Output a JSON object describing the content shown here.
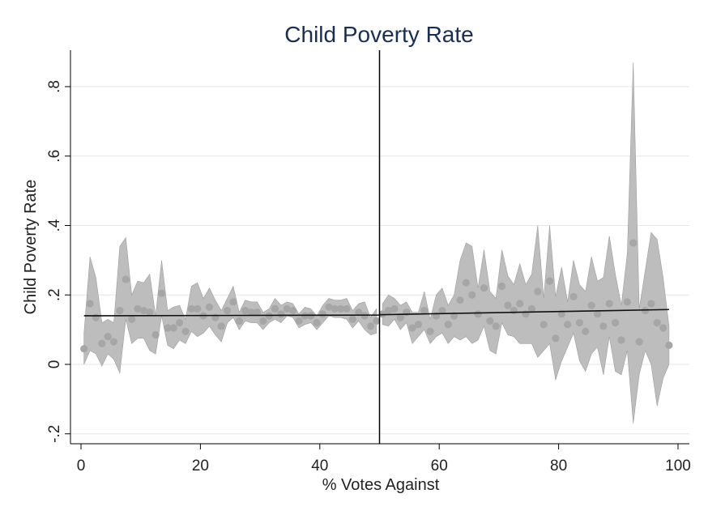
{
  "chart_data": {
    "type": "scatter",
    "title": "Child Poverty Rate",
    "xlabel": "% Votes Against",
    "ylabel": "Child Poverty Rate",
    "xlim": [
      0,
      100
    ],
    "ylim": [
      -0.2,
      0.8
    ],
    "x_ticks": [
      0,
      20,
      40,
      60,
      80,
      100
    ],
    "y_ticks": [
      -0.2,
      0,
      0.2,
      0.4,
      0.6,
      0.8
    ],
    "x_tick_labels": [
      "0",
      "20",
      "40",
      "60",
      "80",
      "100"
    ],
    "y_tick_labels": [
      "-.2",
      "0",
      ".2",
      ".4",
      ".6",
      ".8"
    ],
    "grid": "horizontal",
    "cutoff_x": 50,
    "colors": {
      "band": "#bdbdbd",
      "band_edge": "#9e9e9e",
      "points": "#a6a6a6",
      "fit": "#111111",
      "title": "#1a2e4f"
    },
    "points": {
      "x": [
        0.5,
        1.5,
        2.5,
        3.5,
        4.5,
        5.5,
        6.5,
        7.5,
        8.5,
        9.5,
        10.5,
        11.5,
        12.5,
        13.5,
        14.5,
        15.5,
        16.5,
        17.5,
        18.5,
        19.5,
        20.5,
        21.5,
        22.5,
        23.5,
        24.5,
        25.5,
        26.5,
        27.5,
        28.5,
        29.5,
        30.5,
        31.5,
        32.5,
        33.5,
        34.5,
        35.5,
        36.5,
        37.5,
        38.5,
        39.5,
        40.5,
        41.5,
        42.5,
        43.5,
        44.5,
        45.5,
        46.5,
        47.5,
        48.5,
        49.5,
        50.5,
        51.5,
        52.5,
        53.5,
        54.5,
        55.5,
        56.5,
        57.5,
        58.5,
        59.5,
        60.5,
        61.5,
        62.5,
        63.5,
        64.5,
        65.5,
        66.5,
        67.5,
        68.5,
        69.5,
        70.5,
        71.5,
        72.5,
        73.5,
        74.5,
        75.5,
        76.5,
        77.5,
        78.5,
        79.5,
        80.5,
        81.5,
        82.5,
        83.5,
        84.5,
        85.5,
        86.5,
        87.5,
        88.5,
        89.5,
        90.5,
        91.5,
        92.5,
        93.5,
        94.5,
        95.5,
        96.5,
        97.5,
        98.5
      ],
      "y": [
        0.045,
        0.175,
        0.135,
        0.06,
        0.08,
        0.065,
        0.155,
        0.245,
        0.13,
        0.16,
        0.155,
        0.15,
        0.085,
        0.205,
        0.105,
        0.105,
        0.12,
        0.095,
        0.16,
        0.16,
        0.14,
        0.165,
        0.135,
        0.11,
        0.155,
        0.18,
        0.125,
        0.155,
        0.15,
        0.15,
        0.125,
        0.14,
        0.16,
        0.145,
        0.16,
        0.155,
        0.125,
        0.14,
        0.14,
        0.12,
        0.145,
        0.165,
        0.16,
        0.16,
        0.16,
        0.13,
        0.15,
        0.14,
        0.11,
        0.125,
        0.145,
        0.155,
        0.16,
        0.135,
        0.15,
        0.105,
        0.115,
        0.155,
        0.095,
        0.14,
        0.155,
        0.115,
        0.14,
        0.185,
        0.235,
        0.2,
        0.145,
        0.22,
        0.125,
        0.11,
        0.225,
        0.17,
        0.155,
        0.175,
        0.145,
        0.16,
        0.21,
        0.115,
        0.24,
        0.075,
        0.145,
        0.115,
        0.195,
        0.12,
        0.095,
        0.17,
        0.145,
        0.11,
        0.175,
        0.12,
        0.07,
        0.18,
        0.35,
        0.065,
        0.155,
        0.175,
        0.12,
        0.105,
        0.055
      ]
    },
    "ci_band": {
      "x": [
        0.5,
        1.5,
        2.5,
        3.5,
        4.5,
        5.5,
        6.5,
        7.5,
        8.5,
        9.5,
        10.5,
        11.5,
        12.5,
        13.5,
        14.5,
        15.5,
        16.5,
        17.5,
        18.5,
        19.5,
        20.5,
        21.5,
        22.5,
        23.5,
        24.5,
        25.5,
        26.5,
        27.5,
        28.5,
        29.5,
        30.5,
        31.5,
        32.5,
        33.5,
        34.5,
        35.5,
        36.5,
        37.5,
        38.5,
        39.5,
        40.5,
        41.5,
        42.5,
        43.5,
        44.5,
        45.5,
        46.5,
        47.5,
        48.5,
        49.5,
        50.5,
        51.5,
        52.5,
        53.5,
        54.5,
        55.5,
        56.5,
        57.5,
        58.5,
        59.5,
        60.5,
        61.5,
        62.5,
        63.5,
        64.5,
        65.5,
        66.5,
        67.5,
        68.5,
        69.5,
        70.5,
        71.5,
        72.5,
        73.5,
        74.5,
        75.5,
        76.5,
        77.5,
        78.5,
        79.5,
        80.5,
        81.5,
        82.5,
        83.5,
        84.5,
        85.5,
        86.5,
        87.5,
        88.5,
        89.5,
        90.5,
        91.5,
        92.5,
        93.5,
        94.5,
        95.5,
        96.5,
        97.5,
        98.5
      ],
      "lower": [
        0.0,
        0.04,
        0.03,
        -0.005,
        0.03,
        0.015,
        -0.025,
        0.13,
        0.06,
        0.075,
        0.075,
        0.04,
        0.03,
        0.14,
        0.055,
        0.045,
        0.07,
        0.06,
        0.095,
        0.08,
        0.09,
        0.11,
        0.085,
        0.065,
        0.12,
        0.135,
        0.1,
        0.125,
        0.12,
        0.12,
        0.1,
        0.12,
        0.13,
        0.12,
        0.14,
        0.135,
        0.105,
        0.115,
        0.12,
        0.1,
        0.12,
        0.14,
        0.135,
        0.135,
        0.13,
        0.105,
        0.125,
        0.1,
        0.085,
        0.09,
        0.115,
        0.11,
        0.13,
        0.1,
        0.12,
        0.06,
        0.08,
        0.1,
        0.06,
        0.08,
        0.09,
        0.06,
        0.08,
        0.07,
        0.08,
        0.06,
        0.07,
        0.11,
        0.04,
        0.03,
        0.12,
        0.085,
        0.08,
        0.06,
        0.06,
        0.06,
        0.02,
        0.04,
        0.06,
        -0.045,
        0.01,
        0.05,
        0.09,
        0.01,
        -0.02,
        0.03,
        0.05,
        -0.03,
        0.08,
        -0.02,
        -0.03,
        0.04,
        -0.17,
        -0.03,
        0.04,
        0.0,
        -0.12,
        -0.04,
        0.0
      ],
      "upper": [
        0.09,
        0.31,
        0.25,
        0.12,
        0.13,
        0.12,
        0.34,
        0.365,
        0.2,
        0.24,
        0.235,
        0.26,
        0.14,
        0.3,
        0.155,
        0.165,
        0.17,
        0.13,
        0.225,
        0.235,
        0.19,
        0.22,
        0.185,
        0.155,
        0.19,
        0.225,
        0.15,
        0.185,
        0.18,
        0.18,
        0.15,
        0.16,
        0.19,
        0.17,
        0.18,
        0.175,
        0.145,
        0.165,
        0.16,
        0.14,
        0.17,
        0.19,
        0.185,
        0.185,
        0.19,
        0.155,
        0.175,
        0.18,
        0.135,
        0.16,
        0.175,
        0.2,
        0.19,
        0.17,
        0.18,
        0.15,
        0.15,
        0.21,
        0.13,
        0.2,
        0.22,
        0.17,
        0.2,
        0.3,
        0.35,
        0.34,
        0.22,
        0.33,
        0.21,
        0.19,
        0.33,
        0.255,
        0.23,
        0.29,
        0.23,
        0.26,
        0.4,
        0.19,
        0.4,
        0.195,
        0.28,
        0.18,
        0.3,
        0.23,
        0.21,
        0.31,
        0.24,
        0.25,
        0.37,
        0.26,
        0.17,
        0.32,
        0.87,
        0.16,
        0.27,
        0.38,
        0.36,
        0.25,
        0.11
      ]
    },
    "fit_left": {
      "x": [
        0.5,
        50
      ],
      "y": [
        0.14,
        0.142
      ]
    },
    "fit_right": {
      "x": [
        50,
        98.5
      ],
      "y": [
        0.143,
        0.158
      ]
    }
  }
}
